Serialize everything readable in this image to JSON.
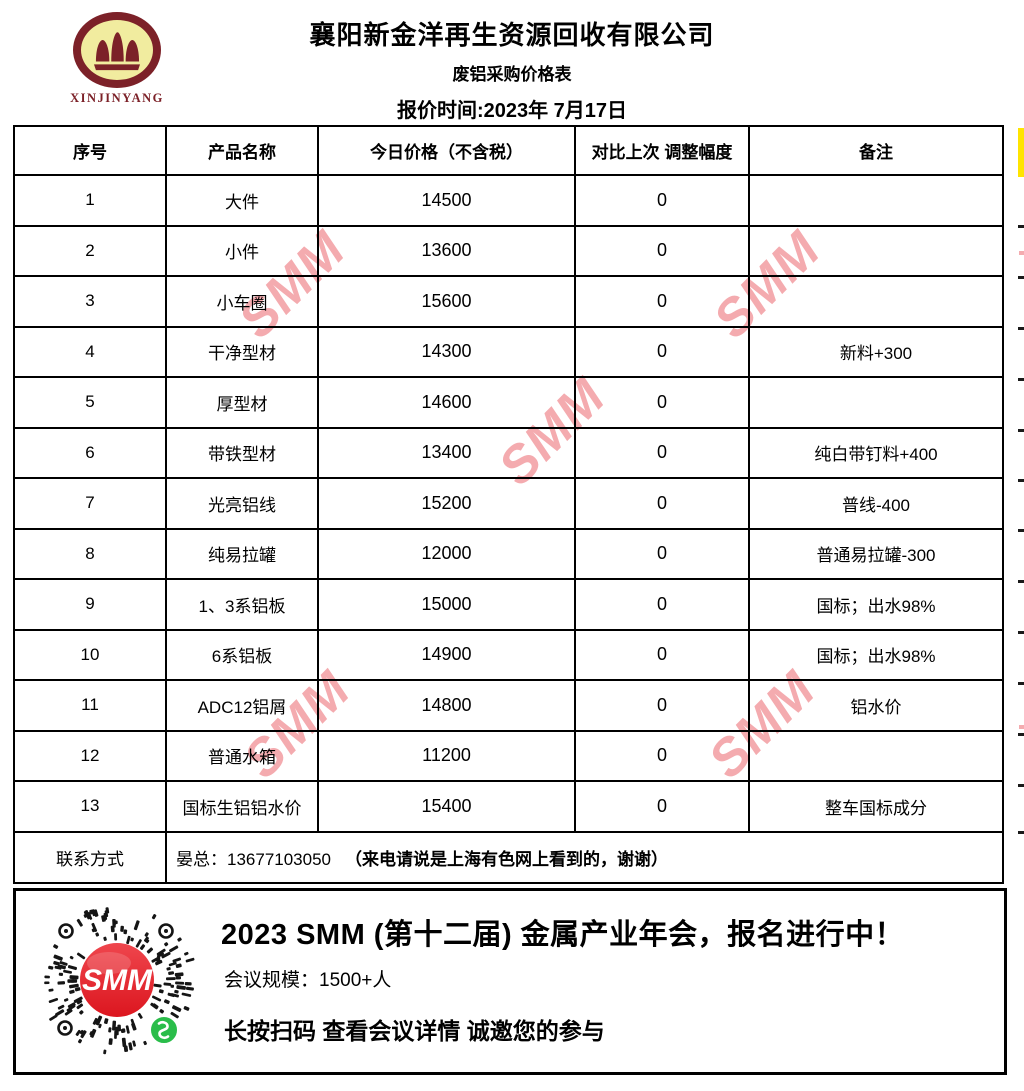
{
  "page": {
    "header": {
      "logo_wordmark": "XINJINYANG",
      "company_name": "襄阳新金洋再生资源回收有限公司",
      "subtitle": "废铝采购价格表",
      "quote_date": "报价时间:2023年 7月17日"
    },
    "table": {
      "columns": [
        "序号",
        "产品名称",
        "今日价格（不含税）",
        "对比上次 调整幅度",
        "备注"
      ],
      "rows": [
        {
          "no": "1",
          "name": "大件",
          "price": "14500",
          "change": "0",
          "remark": ""
        },
        {
          "no": "2",
          "name": "小件",
          "price": "13600",
          "change": "0",
          "remark": ""
        },
        {
          "no": "3",
          "name": "小车圈",
          "price": "15600",
          "change": "0",
          "remark": ""
        },
        {
          "no": "4",
          "name": "干净型材",
          "price": "14300",
          "change": "0",
          "remark": "新料+300"
        },
        {
          "no": "5",
          "name": "厚型材",
          "price": "14600",
          "change": "0",
          "remark": ""
        },
        {
          "no": "6",
          "name": "带铁型材",
          "price": "13400",
          "change": "0",
          "remark": "纯白带钉料+400"
        },
        {
          "no": "7",
          "name": "光亮铝线",
          "price": "15200",
          "change": "0",
          "remark": "普线-400"
        },
        {
          "no": "8",
          "name": "纯易拉罐",
          "price": "12000",
          "change": "0",
          "remark": "普通易拉罐-300"
        },
        {
          "no": "9",
          "name": "1、3系铝板",
          "price": "15000",
          "change": "0",
          "remark": "国标；出水98%"
        },
        {
          "no": "10",
          "name": "6系铝板",
          "price": "14900",
          "change": "0",
          "remark": "国标；出水98%"
        },
        {
          "no": "11",
          "name": "ADC12铝屑",
          "price": "14800",
          "change": "0",
          "remark": "铝水价"
        },
        {
          "no": "12",
          "name": "普通水箱",
          "price": "11200",
          "change": "0",
          "remark": ""
        },
        {
          "no": "13",
          "name": "国标生铝铝水价",
          "price": "15400",
          "change": "0",
          "remark": "整车国标成分"
        }
      ],
      "contact": {
        "label": "联系方式",
        "value": "晏总：13677103050",
        "note": "（来电请说是上海有色网上看到的，谢谢）"
      }
    },
    "watermark": {
      "text": "SMM"
    },
    "footer": {
      "title": "2023 SMM (第十二届) 金属产业年会，报名进行中！",
      "scale_line": "会议规模：1500+人",
      "action_line": "长按扫码 查看会议详情  诚邀您的参与",
      "qr_badge_text": "SMM"
    },
    "colors": {
      "logo_maroon": "#7c2128",
      "logo_yellow": "#f1ec9f",
      "smm_red_top": "#ef464d",
      "smm_red_bottom": "#dc161f",
      "wechat_green": "#2abd4a",
      "watermark_pink": "#f4abaf",
      "edge_highlight_yellow": "#ffe400"
    }
  }
}
